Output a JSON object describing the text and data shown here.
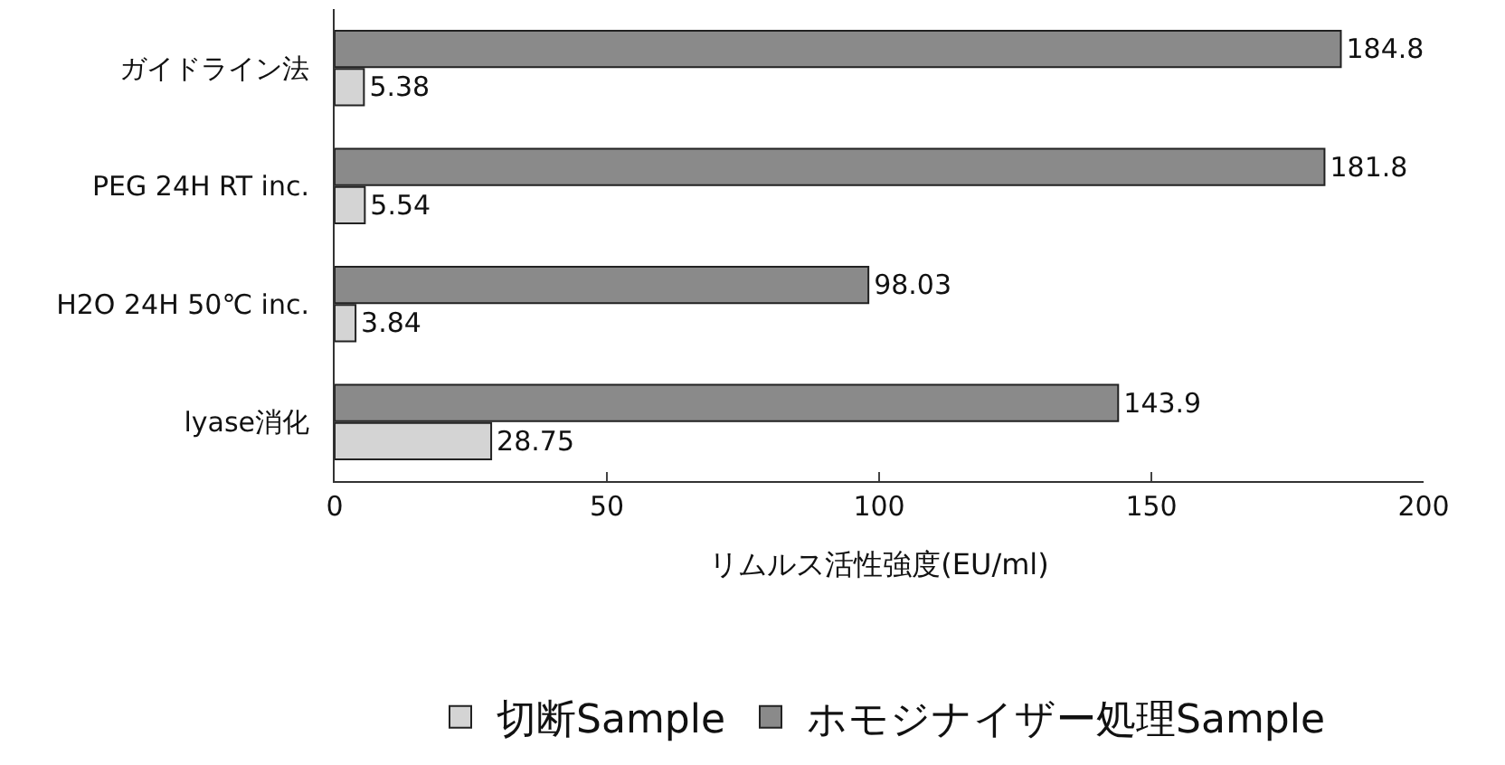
{
  "chart_data": {
    "type": "bar",
    "orientation": "horizontal",
    "categories": [
      "ガイドライン法",
      "PEG 24H RT inc.",
      "H2O 24H 50℃ inc.",
      "lyase消化"
    ],
    "series": [
      {
        "name": "切断Sample",
        "color": "#d4d4d4",
        "values": [
          5.38,
          5.54,
          3.84,
          28.75
        ]
      },
      {
        "name": "ホモジナイザー処理Sample",
        "color": "#8a8a8a",
        "values": [
          184.8,
          181.8,
          98.03,
          143.9
        ]
      }
    ],
    "xlabel": "リムルス活性強度(EU/ml)",
    "xlim": [
      0,
      200
    ],
    "xticks": [
      0,
      50,
      100,
      150,
      200
    ],
    "data_labels": true,
    "legend": "bottom"
  }
}
